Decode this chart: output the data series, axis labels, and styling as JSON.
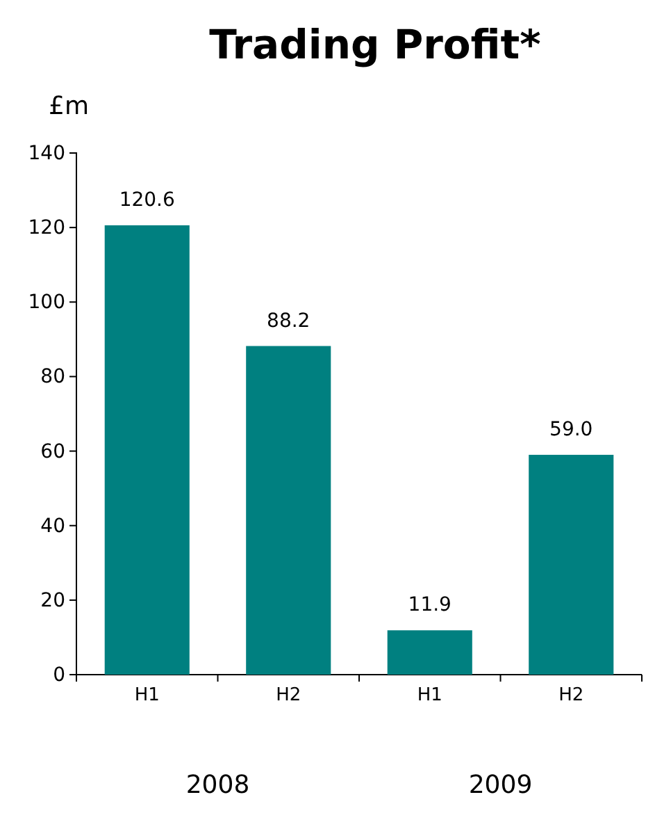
{
  "chart_data": {
    "type": "bar",
    "title": "Trading Profit*",
    "ylabel": "£m",
    "categories": [
      "H1",
      "H2",
      "H1",
      "H2"
    ],
    "values": [
      120.6,
      88.2,
      11.9,
      59.0
    ],
    "value_labels": [
      "120.6",
      "88.2",
      "11.9",
      "59.0"
    ],
    "color": "#008080",
    "ylim": [
      0,
      140
    ],
    "yticks": [
      0,
      20,
      40,
      60,
      80,
      100,
      120,
      140
    ],
    "annotations": [
      "2008",
      "2009"
    ]
  }
}
